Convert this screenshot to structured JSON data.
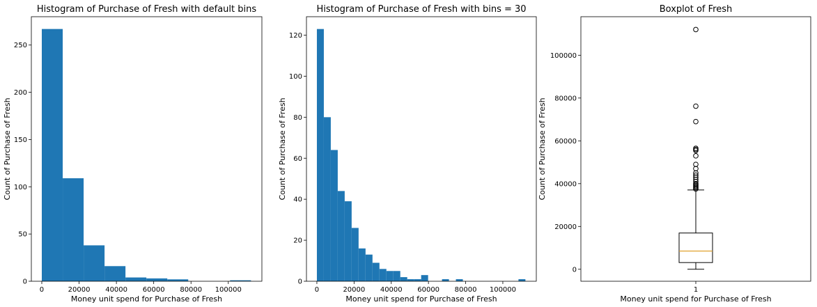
{
  "colors": {
    "bar": "#1f77b4",
    "median": "#e0a12e",
    "axis": "#000000"
  },
  "chart_data": [
    {
      "type": "bar",
      "title": "Histogram of Purchase of Fresh with default bins",
      "xlabel": "Money unit spend for Purchase of Fresh",
      "ylabel": "Count of Purchase of Fresh",
      "xlim": [
        -5600,
        118000
      ],
      "ylim": [
        0,
        280
      ],
      "x_ticks": [
        0,
        20000,
        40000,
        60000,
        80000,
        100000
      ],
      "x_tick_labels": [
        "0",
        "20000",
        "40000",
        "60000",
        "80000",
        "100000"
      ],
      "y_ticks": [
        0,
        50,
        100,
        150,
        200,
        250
      ],
      "y_tick_labels": [
        "0",
        "50",
        "100",
        "150",
        "200",
        "250"
      ],
      "bin_start": 3,
      "bin_width": 11215,
      "values": [
        267,
        109,
        38,
        16,
        4,
        3,
        2,
        0,
        0,
        1
      ],
      "grid": false
    },
    {
      "type": "bar",
      "title": "Histogram of Purchase of Fresh with bins = 30",
      "xlabel": "Money unit spend for Purchase of Fresh",
      "ylabel": "Count of Purchase of Fresh",
      "xlim": [
        -5600,
        118000
      ],
      "ylim": [
        0,
        129
      ],
      "x_ticks": [
        0,
        20000,
        40000,
        60000,
        80000,
        100000
      ],
      "x_tick_labels": [
        "0",
        "20000",
        "40000",
        "60000",
        "80000",
        "100000"
      ],
      "y_ticks": [
        0,
        20,
        40,
        60,
        80,
        100,
        120
      ],
      "y_tick_labels": [
        "0",
        "20",
        "40",
        "60",
        "80",
        "100",
        "120"
      ],
      "bin_start": 3,
      "bin_width": 3738,
      "values": [
        123,
        80,
        64,
        44,
        39,
        26,
        16,
        13,
        9,
        6,
        5,
        5,
        2,
        1,
        1,
        3,
        0,
        0,
        1,
        0,
        1,
        0,
        0,
        0,
        0,
        0,
        0,
        0,
        0,
        1
      ],
      "grid": false
    },
    {
      "type": "box",
      "title": "Boxplot of Fresh",
      "xlabel": "Money unit spend for Purchase of Fresh",
      "ylabel": "Count of Purchase of Fresh",
      "categories": [
        "1"
      ],
      "ylim": [
        -5600,
        118000
      ],
      "y_ticks": [
        0,
        20000,
        40000,
        60000,
        80000,
        100000
      ],
      "y_tick_labels": [
        "0",
        "20000",
        "40000",
        "60000",
        "80000",
        "100000"
      ],
      "whisker_low": 3,
      "q1": 3128,
      "median": 8504,
      "q3": 16934,
      "whisker_high": 37036,
      "outliers": [
        37500,
        38000,
        38500,
        39000,
        39500,
        40000,
        41000,
        42000,
        43000,
        44000,
        45000,
        47000,
        49000,
        53000,
        55500,
        56000,
        56500,
        69000,
        76200,
        112000
      ],
      "grid": false
    }
  ]
}
